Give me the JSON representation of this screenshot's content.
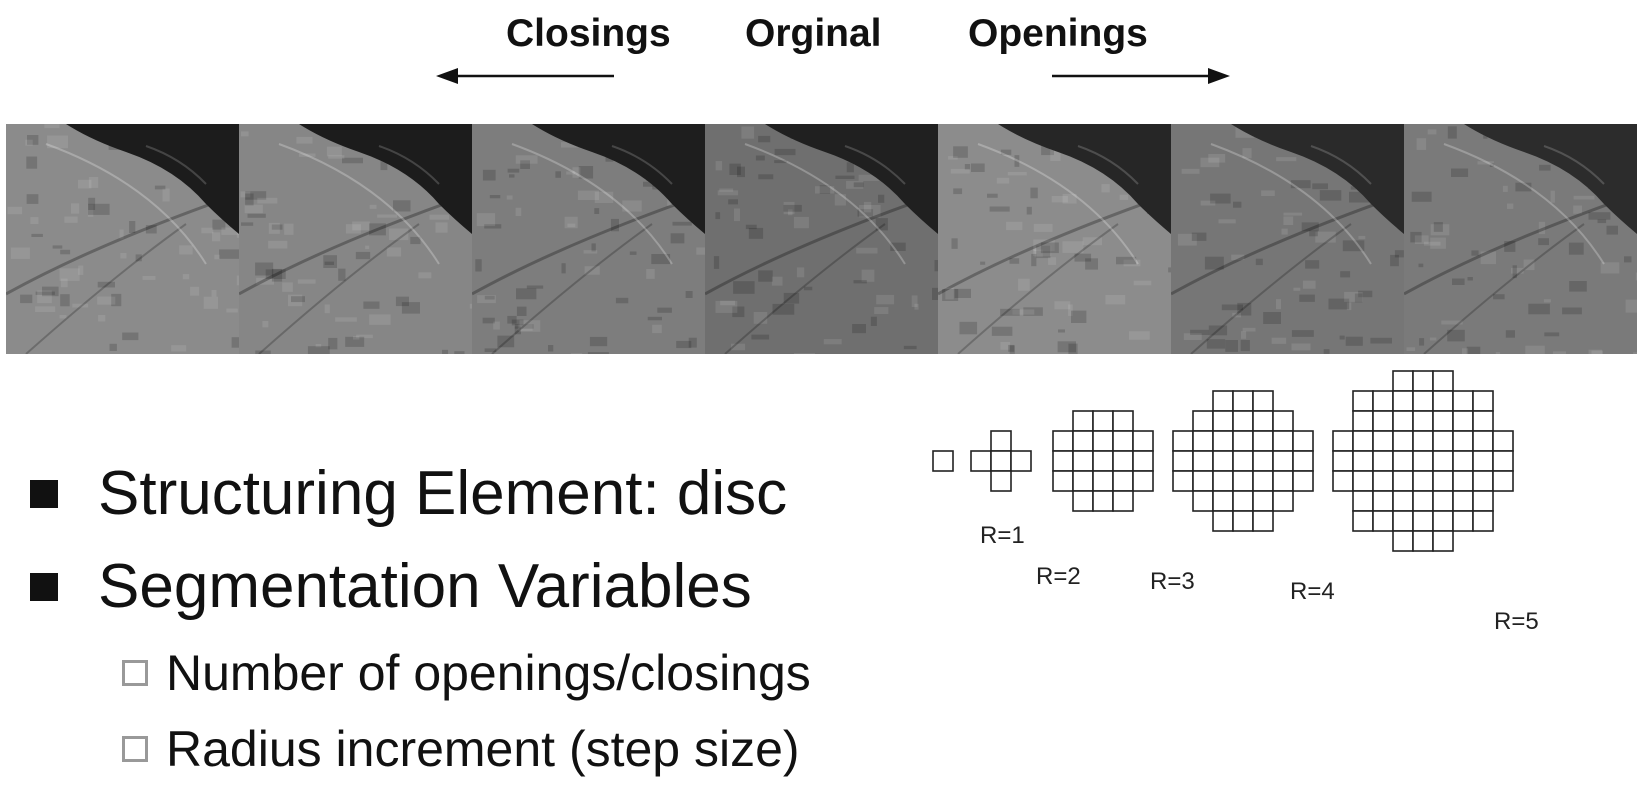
{
  "header": {
    "closings": "Closings",
    "original": "Orginal",
    "openings": "Openings"
  },
  "image_strip": {
    "panels": [
      {
        "name": "closing-3",
        "tone": "#8b8b8b",
        "water": "#1c1c1c"
      },
      {
        "name": "closing-2",
        "tone": "#868686",
        "water": "#1c1c1c"
      },
      {
        "name": "closing-1",
        "tone": "#7d7d7d",
        "water": "#1e1e1e"
      },
      {
        "name": "original",
        "tone": "#6f6f6f",
        "water": "#202020"
      },
      {
        "name": "opening-1",
        "tone": "#8c8c8c",
        "water": "#262626"
      },
      {
        "name": "opening-2",
        "tone": "#767676",
        "water": "#2a2a2a"
      },
      {
        "name": "opening-3",
        "tone": "#7a7a7a",
        "water": "#2c2c2c"
      }
    ]
  },
  "bullets": [
    {
      "text": "Structuring Element: disc"
    },
    {
      "text": "Segmentation Variables"
    }
  ],
  "sub_bullets": [
    {
      "text": "Number of openings/closings"
    },
    {
      "text": "Radius increment (step size)"
    }
  ],
  "structuring_elements": [
    {
      "label": "R=1",
      "radius": 1
    },
    {
      "label": "R=2",
      "radius": 2
    },
    {
      "label": "R=3",
      "radius": 3
    },
    {
      "label": "R=4",
      "radius": 4
    },
    {
      "label": "R=5",
      "radius": 5
    }
  ]
}
